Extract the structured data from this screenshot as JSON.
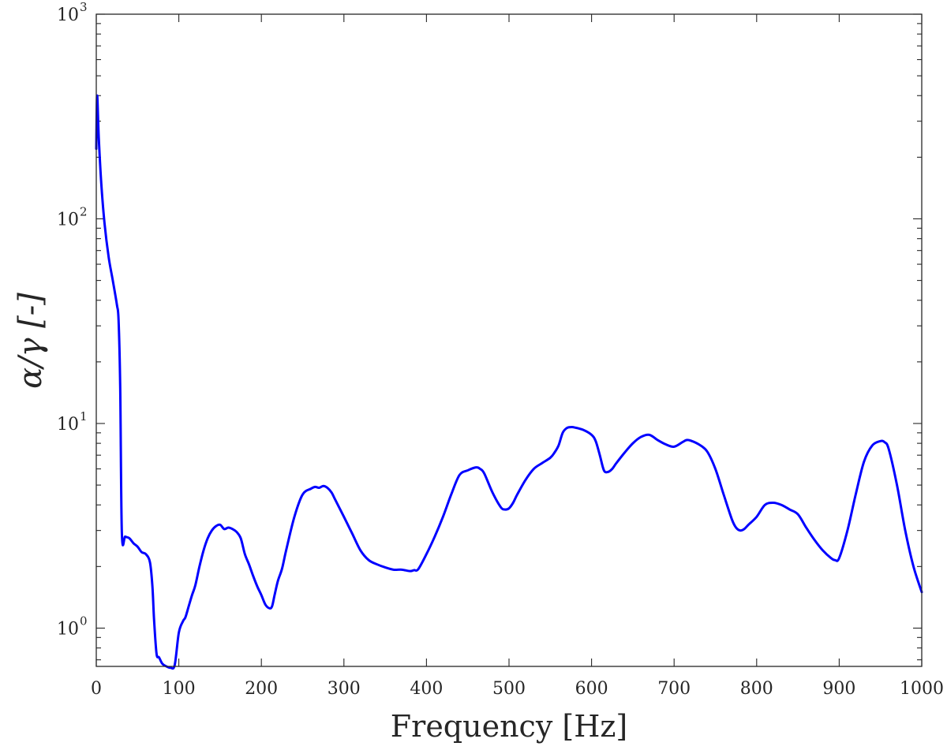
{
  "chart_data": {
    "type": "line",
    "xlabel": "Frequency [Hz]",
    "ylabel": "α/γ [-]",
    "xlim": [
      0,
      1000
    ],
    "ylim": [
      0.65,
      1000
    ],
    "yscale": "log",
    "xticks": [
      0,
      100,
      200,
      300,
      400,
      500,
      600,
      700,
      800,
      900,
      1000
    ],
    "xtick_labels": [
      "0",
      "100",
      "200",
      "300",
      "400",
      "500",
      "600",
      "700",
      "800",
      "900",
      "1000"
    ],
    "yticks": [
      {
        "value": 1,
        "base": "10",
        "exp": "0"
      },
      {
        "value": 10,
        "base": "10",
        "exp": "1"
      },
      {
        "value": 100,
        "base": "10",
        "exp": "2"
      },
      {
        "value": 1000,
        "base": "10",
        "exp": "3"
      }
    ],
    "grid": false,
    "series": [
      {
        "color": "#0000ff",
        "x": [
          0,
          1,
          3,
          6,
          10,
          15,
          20,
          25,
          27,
          29,
          31,
          35,
          40,
          45,
          50,
          55,
          60,
          65,
          68,
          70,
          73,
          76,
          80,
          85,
          90,
          95,
          100,
          105,
          108,
          112,
          116,
          120,
          125,
          130,
          135,
          140,
          145,
          150,
          155,
          160,
          165,
          170,
          175,
          180,
          185,
          190,
          195,
          200,
          205,
          210,
          213,
          216,
          220,
          225,
          230,
          240,
          250,
          260,
          265,
          270,
          275,
          280,
          285,
          290,
          300,
          310,
          320,
          330,
          340,
          350,
          360,
          370,
          380,
          385,
          390,
          400,
          410,
          420,
          430,
          440,
          450,
          460,
          465,
          470,
          480,
          490,
          495,
          500,
          505,
          510,
          520,
          530,
          540,
          550,
          555,
          560,
          565,
          570,
          575,
          580,
          590,
          600,
          605,
          610,
          615,
          620,
          625,
          630,
          640,
          650,
          660,
          670,
          680,
          690,
          700,
          710,
          715,
          720,
          730,
          740,
          750,
          760,
          770,
          775,
          780,
          785,
          790,
          800,
          810,
          820,
          830,
          840,
          850,
          860,
          870,
          880,
          890,
          895,
          900,
          910,
          920,
          930,
          940,
          950,
          955,
          960,
          970,
          980,
          990,
          1000
        ],
        "y": [
          220,
          400,
          250,
          150,
          95,
          65,
          50,
          38,
          32,
          15,
          2.9,
          2.8,
          2.75,
          2.6,
          2.5,
          2.35,
          2.3,
          2.1,
          1.6,
          1.1,
          0.75,
          0.72,
          0.67,
          0.65,
          0.64,
          0.66,
          0.95,
          1.08,
          1.13,
          1.28,
          1.45,
          1.62,
          2.0,
          2.4,
          2.75,
          3.0,
          3.15,
          3.2,
          3.05,
          3.1,
          3.05,
          2.95,
          2.75,
          2.3,
          2.05,
          1.8,
          1.6,
          1.45,
          1.3,
          1.25,
          1.28,
          1.45,
          1.7,
          1.95,
          2.4,
          3.5,
          4.5,
          4.8,
          4.9,
          4.85,
          4.95,
          4.85,
          4.6,
          4.2,
          3.5,
          2.9,
          2.4,
          2.15,
          2.05,
          1.98,
          1.93,
          1.93,
          1.9,
          1.92,
          1.94,
          2.3,
          2.8,
          3.5,
          4.5,
          5.6,
          5.9,
          6.1,
          6.0,
          5.7,
          4.6,
          3.9,
          3.8,
          3.85,
          4.1,
          4.5,
          5.3,
          6.0,
          6.4,
          6.8,
          7.2,
          7.8,
          9.0,
          9.5,
          9.6,
          9.55,
          9.3,
          8.8,
          8.2,
          7.0,
          5.9,
          5.8,
          6.0,
          6.4,
          7.2,
          8.0,
          8.6,
          8.8,
          8.3,
          7.9,
          7.7,
          8.1,
          8.3,
          8.25,
          7.9,
          7.3,
          6.0,
          4.5,
          3.4,
          3.1,
          3.0,
          3.05,
          3.2,
          3.5,
          4.0,
          4.1,
          4.0,
          3.8,
          3.6,
          3.1,
          2.7,
          2.4,
          2.2,
          2.15,
          2.2,
          3.0,
          4.5,
          6.5,
          7.8,
          8.2,
          8.1,
          7.5,
          5.0,
          3.0,
          2.0,
          1.5
        ]
      }
    ]
  }
}
